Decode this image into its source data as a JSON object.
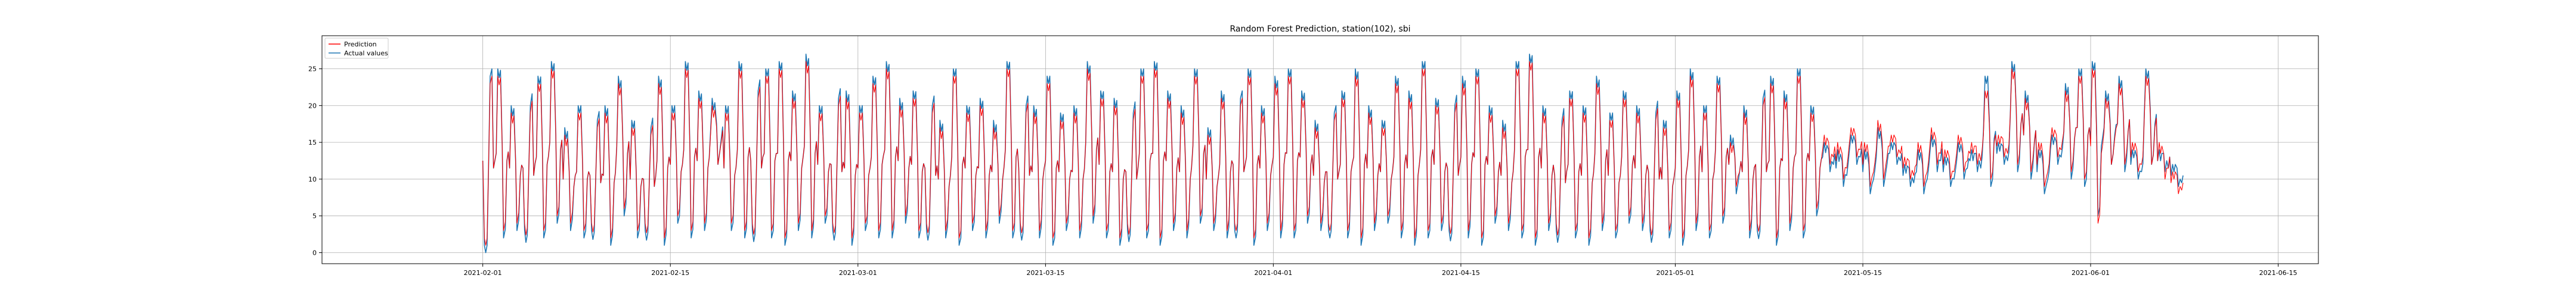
{
  "chart_data": {
    "type": "line",
    "title": "Random Forest Prediction, station(102), sbi",
    "xlabel": "",
    "ylabel": "",
    "x_start": "2021-02-01",
    "x_end": "2021-06-10",
    "xlim": [
      "2021-01-20",
      "2021-06-18"
    ],
    "ylim": [
      -1.5,
      29.5
    ],
    "grid": true,
    "legend_position": "top-left",
    "x_tick_labels": [
      "2021-02-01",
      "2021-02-15",
      "2021-03-01",
      "2021-03-15",
      "2021-04-01",
      "2021-04-15",
      "2021-05-01",
      "2021-05-15",
      "2021-06-01",
      "2021-06-15"
    ],
    "y_tick_labels": [
      "0",
      "5",
      "10",
      "15",
      "20",
      "25"
    ],
    "series": [
      {
        "name": "Prediction",
        "color": "#ff0000"
      },
      {
        "name": "Actual values",
        "color": "#1f77b4"
      }
    ],
    "daily_actual": [
      [
        1,
        24
      ],
      [
        25,
        2
      ],
      [
        20,
        3
      ],
      [
        3,
        20
      ],
      [
        24,
        2
      ],
      [
        26,
        4
      ],
      [
        17,
        3
      ],
      [
        20,
        2
      ],
      [
        3,
        18
      ],
      [
        20,
        1
      ],
      [
        24,
        5
      ],
      [
        18,
        2
      ],
      [
        3,
        17
      ],
      [
        24,
        1
      ],
      [
        20,
        4
      ],
      [
        26,
        2
      ],
      [
        22,
        3
      ],
      [
        21,
        12
      ],
      [
        20,
        3
      ],
      [
        26,
        2
      ],
      [
        3,
        22
      ],
      [
        25,
        2
      ],
      [
        26,
        1
      ],
      [
        22,
        3
      ],
      [
        27,
        2
      ],
      [
        20,
        4
      ],
      [
        3,
        21
      ],
      [
        22,
        1
      ],
      [
        20,
        3
      ],
      [
        24,
        2
      ],
      [
        26,
        2
      ],
      [
        21,
        4
      ],
      [
        22,
        2
      ],
      [
        3,
        20
      ],
      [
        18,
        2
      ],
      [
        25,
        1
      ],
      [
        20,
        3
      ],
      [
        21,
        2
      ],
      [
        18,
        4
      ],
      [
        26,
        2
      ],
      [
        3,
        20
      ],
      [
        20,
        2
      ],
      [
        24,
        1
      ],
      [
        19,
        3
      ],
      [
        20,
        2
      ],
      [
        26,
        4
      ],
      [
        22,
        2
      ],
      [
        21,
        1
      ],
      [
        3,
        19
      ],
      [
        25,
        2
      ],
      [
        26,
        1
      ],
      [
        22,
        3
      ],
      [
        20,
        2
      ],
      [
        25,
        4
      ],
      [
        17,
        3
      ],
      [
        22,
        2
      ],
      [
        3,
        21
      ],
      [
        25,
        1
      ],
      [
        20,
        3
      ],
      [
        24,
        2
      ],
      [
        25,
        2
      ],
      [
        22,
        4
      ],
      [
        18,
        3
      ],
      [
        3,
        19
      ],
      [
        22,
        2
      ],
      [
        25,
        1
      ],
      [
        20,
        3
      ],
      [
        18,
        4
      ],
      [
        24,
        2
      ],
      [
        22,
        1
      ],
      [
        26,
        2
      ],
      [
        21,
        3
      ],
      [
        3,
        20
      ],
      [
        24,
        2
      ],
      [
        25,
        1
      ],
      [
        20,
        4
      ],
      [
        18,
        3
      ],
      [
        26,
        2
      ],
      [
        27,
        1
      ],
      [
        20,
        3
      ],
      [
        3,
        18
      ],
      [
        22,
        2
      ],
      [
        20,
        1
      ],
      [
        24,
        3
      ],
      [
        19,
        2
      ],
      [
        22,
        4
      ],
      [
        20,
        3
      ],
      [
        3,
        19
      ],
      [
        18,
        2
      ],
      [
        22,
        1
      ],
      [
        25,
        3
      ],
      [
        20,
        2
      ],
      [
        24,
        4
      ],
      [
        16,
        8
      ],
      [
        20,
        2
      ],
      [
        3,
        21
      ],
      [
        24,
        1
      ],
      [
        22,
        3
      ],
      [
        25,
        2
      ],
      [
        20,
        5
      ],
      [
        15,
        11
      ],
      [
        14,
        9
      ],
      [
        16,
        12
      ],
      [
        14,
        8
      ],
      [
        17,
        9
      ],
      [
        15,
        12
      ],
      [
        12,
        9
      ],
      [
        14,
        8
      ],
      [
        16,
        11
      ],
      [
        13,
        9
      ],
      [
        15,
        10
      ],
      [
        14,
        11
      ],
      [
        24,
        9
      ],
      [
        15,
        12
      ],
      [
        26,
        11
      ],
      [
        22,
        10
      ],
      [
        14,
        8
      ],
      [
        16,
        12
      ],
      [
        23,
        10
      ],
      [
        25,
        9
      ],
      [
        26,
        5
      ],
      [
        22,
        12
      ],
      [
        24,
        11
      ],
      [
        14,
        10
      ],
      [
        25,
        12
      ],
      [
        14,
        11
      ],
      [
        12,
        9
      ]
    ],
    "daily_prediction": [
      [
        2,
        23
      ],
      [
        24,
        3
      ],
      [
        19,
        4
      ],
      [
        4,
        19
      ],
      [
        23,
        3
      ],
      [
        25,
        5
      ],
      [
        16,
        4
      ],
      [
        19,
        3
      ],
      [
        4,
        17
      ],
      [
        19,
        2
      ],
      [
        23,
        6
      ],
      [
        17,
        3
      ],
      [
        4,
        16
      ],
      [
        23,
        2
      ],
      [
        19,
        5
      ],
      [
        25,
        3
      ],
      [
        21,
        4
      ],
      [
        20,
        12
      ],
      [
        19,
        4
      ],
      [
        25,
        3
      ],
      [
        4,
        21
      ],
      [
        24,
        3
      ],
      [
        25,
        2
      ],
      [
        21,
        4
      ],
      [
        26,
        3
      ],
      [
        19,
        5
      ],
      [
        4,
        20
      ],
      [
        21,
        2
      ],
      [
        19,
        4
      ],
      [
        23,
        3
      ],
      [
        25,
        3
      ],
      [
        20,
        5
      ],
      [
        21,
        3
      ],
      [
        4,
        19
      ],
      [
        17,
        3
      ],
      [
        24,
        2
      ],
      [
        19,
        4
      ],
      [
        20,
        3
      ],
      [
        17,
        5
      ],
      [
        25,
        3
      ],
      [
        4,
        19
      ],
      [
        19,
        3
      ],
      [
        23,
        2
      ],
      [
        18,
        4
      ],
      [
        19,
        3
      ],
      [
        25,
        5
      ],
      [
        21,
        3
      ],
      [
        20,
        2
      ],
      [
        4,
        18
      ],
      [
        24,
        3
      ],
      [
        25,
        2
      ],
      [
        21,
        4
      ],
      [
        19,
        3
      ],
      [
        24,
        5
      ],
      [
        16,
        4
      ],
      [
        21,
        3
      ],
      [
        4,
        20
      ],
      [
        24,
        2
      ],
      [
        19,
        4
      ],
      [
        23,
        3
      ],
      [
        24,
        3
      ],
      [
        21,
        5
      ],
      [
        17,
        4
      ],
      [
        4,
        18
      ],
      [
        21,
        3
      ],
      [
        24,
        2
      ],
      [
        19,
        4
      ],
      [
        17,
        5
      ],
      [
        23,
        3
      ],
      [
        21,
        2
      ],
      [
        25,
        3
      ],
      [
        20,
        4
      ],
      [
        4,
        19
      ],
      [
        23,
        3
      ],
      [
        24,
        2
      ],
      [
        19,
        5
      ],
      [
        17,
        4
      ],
      [
        25,
        3
      ],
      [
        26,
        2
      ],
      [
        19,
        4
      ],
      [
        4,
        17
      ],
      [
        21,
        3
      ],
      [
        19,
        2
      ],
      [
        23,
        4
      ],
      [
        18,
        3
      ],
      [
        21,
        5
      ],
      [
        19,
        4
      ],
      [
        4,
        18
      ],
      [
        17,
        3
      ],
      [
        21,
        2
      ],
      [
        24,
        4
      ],
      [
        19,
        3
      ],
      [
        23,
        5
      ],
      [
        15,
        9
      ],
      [
        19,
        3
      ],
      [
        4,
        20
      ],
      [
        23,
        2
      ],
      [
        21,
        4
      ],
      [
        24,
        3
      ],
      [
        19,
        6
      ],
      [
        16,
        12
      ],
      [
        15,
        10
      ],
      [
        17,
        13
      ],
      [
        15,
        9
      ],
      [
        18,
        10
      ],
      [
        16,
        13
      ],
      [
        13,
        10
      ],
      [
        15,
        9
      ],
      [
        17,
        12
      ],
      [
        14,
        10
      ],
      [
        16,
        11
      ],
      [
        15,
        12
      ],
      [
        22,
        10
      ],
      [
        16,
        13
      ],
      [
        25,
        12
      ],
      [
        21,
        11
      ],
      [
        15,
        9
      ],
      [
        17,
        13
      ],
      [
        22,
        11
      ],
      [
        24,
        10
      ],
      [
        25,
        4
      ],
      [
        21,
        12
      ],
      [
        23,
        12
      ],
      [
        15,
        11
      ],
      [
        24,
        12
      ],
      [
        15,
        10
      ],
      [
        11,
        8
      ]
    ]
  }
}
